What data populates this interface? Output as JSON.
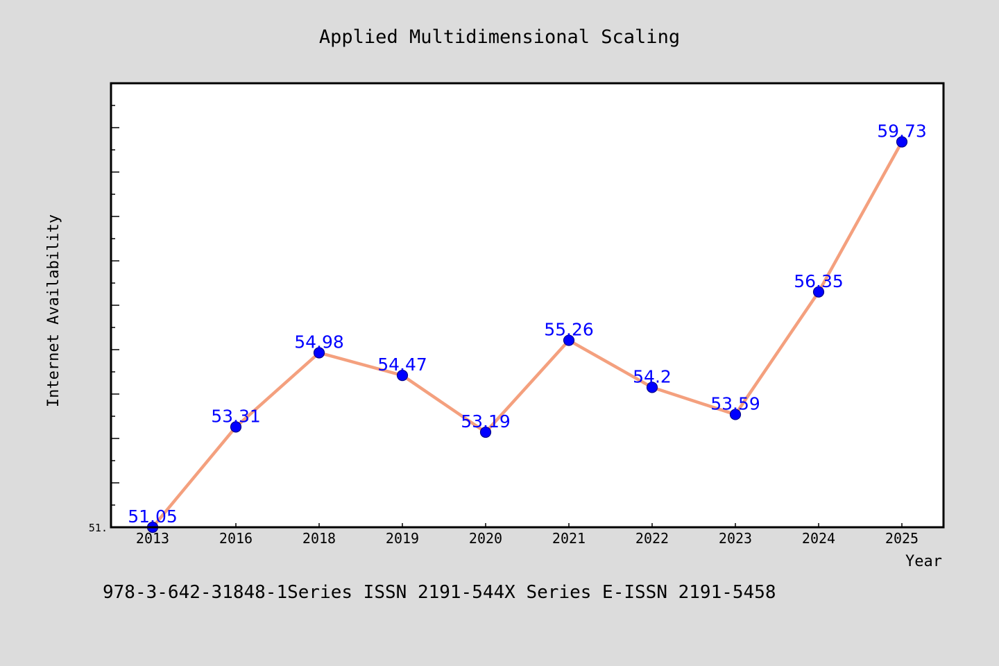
{
  "chart_data": {
    "type": "line",
    "title": "Applied Multidimensional Scaling",
    "xlabel": "Year",
    "ylabel": "Internet Availability",
    "categories": [
      "2013",
      "2016",
      "2018",
      "2019",
      "2020",
      "2021",
      "2022",
      "2023",
      "2024",
      "2025"
    ],
    "series": [
      {
        "values": [
          51.05,
          53.31,
          54.98,
          54.47,
          53.19,
          55.26,
          54.2,
          53.59,
          56.35,
          59.73
        ],
        "data_labels": [
          "51.05",
          "53.31",
          "54.98",
          "54.47",
          "53.19",
          "55.26",
          "54.2",
          "53.59",
          "56.35",
          "59.73"
        ]
      }
    ],
    "ylim": [
      51.05,
      61.05
    ],
    "ytick_labels": [
      "51."
    ],
    "grid": false,
    "legend": "none",
    "line_color": "#f4a07e",
    "marker_color": "#0000ff",
    "label_color": "#0000ff",
    "background_color": "#dcdcdc",
    "plot_background_color": "#ffffff"
  },
  "footer": {
    "text": "978-3-642-31848-1Series ISSN 2191-544X Series E-ISSN 2191-5458"
  }
}
